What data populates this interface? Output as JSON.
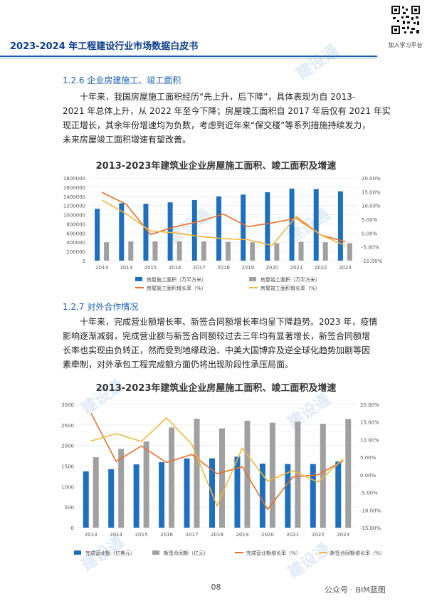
{
  "header": {
    "title": "2023-2024 年工程建设行业市场数据白皮书"
  },
  "qr_caption": "加入学习平台",
  "watermark_text": "建设通",
  "section1": {
    "heading": "1.2.6 企业房建施工、竣工面积",
    "lines": [
      "十年来，我国房屋施工面积经历“先上升，后下降”，具体表现为自 2013-",
      "2021 年总体上升，从 2022 年至今下降；房屋竣工面积自 2017 年后仅有 2021 年实",
      "现正增长，其余年份增速均为负数，考虑到近年来“保交楼”等系列措施持续发力，",
      "未来房屋竣工面积增速有望改善。"
    ]
  },
  "section2": {
    "heading": "1.2.7 对外合作情况",
    "lines": [
      "十年来，完成营业额增长率、新签合同额增长率均呈下降趋势。2023 年，疫情",
      "影响逐渐减弱，完成营业额与新签合同额较过去三年均有显著增长，新签合同额增",
      "长率也实现由负转正，然而受到地缘政治、中美大国博弈及逆全球化趋势加剧等因",
      "素牵制，对外承包工程完成额方面仍将出现阶段性承压局面。"
    ]
  },
  "chart_data": [
    {
      "type": "bar",
      "title": "2013-2023年建筑业企业房屋施工面积、竣工面积及增速",
      "categories": [
        "2013",
        "2014",
        "2015",
        "2016",
        "2017",
        "2018",
        "2019",
        "2020",
        "2021",
        "2022",
        "2023"
      ],
      "ylim": [
        0,
        1800000
      ],
      "yticks": [
        "0",
        "200000",
        "400000",
        "600000",
        "800000",
        "1000000",
        "1200000",
        "1400000",
        "1600000",
        "1800000"
      ],
      "y2lim": [
        -10,
        20
      ],
      "y2ticks": [
        "-10.00%",
        "-5.00%",
        "0.00%",
        "5.00%",
        "10.00%",
        "15.00%",
        "20.00%"
      ],
      "series": [
        {
          "name": "房屋施工面积（万平方米）",
          "kind": "bar",
          "axis": "left",
          "color": "#1f6fbf",
          "values": [
            1130000,
            1250000,
            1240000,
            1270000,
            1320000,
            1400000,
            1440000,
            1490000,
            1570000,
            1560000,
            1510000
          ]
        },
        {
          "name": "房屋竣工面积（万平方米）",
          "kind": "bar",
          "axis": "left",
          "color": "#a0a0a0",
          "values": [
            400000,
            420000,
            420000,
            420000,
            420000,
            410000,
            400000,
            380000,
            410000,
            400000,
            380000
          ]
        },
        {
          "name": "房屋施工面积增长率（%）",
          "kind": "line",
          "axis": "right",
          "color": "#e8702a",
          "values": [
            14.8,
            10.5,
            -0.5,
            2.3,
            4.2,
            6.9,
            2.3,
            3.7,
            5.4,
            -0.7,
            -3.1
          ]
        },
        {
          "name": "房屋竣工面积增长率（%）",
          "kind": "line",
          "axis": "right",
          "color": "#f0b63c",
          "values": [
            12.0,
            7.0,
            0.8,
            0.1,
            -1.2,
            -2.0,
            -2.4,
            -4.5,
            6.1,
            -0.7,
            -4.5
          ]
        }
      ]
    },
    {
      "type": "bar",
      "title": "2013-2023年建筑业企业房屋施工面积、竣工面积及增速",
      "categories": [
        "2013",
        "2014",
        "2015",
        "2016",
        "2017",
        "2018",
        "2019",
        "2020",
        "2021",
        "2022",
        "2023"
      ],
      "ylim": [
        0,
        3000
      ],
      "yticks": [
        "0",
        "500",
        "1000",
        "1500",
        "2000",
        "2500",
        "3000"
      ],
      "y2lim": [
        -15,
        20
      ],
      "y2ticks": [
        "-15.00%",
        "-10.00%",
        "-5.00%",
        "0.00%",
        "5.00%",
        "10.00%",
        "15.00%",
        "20.00%"
      ],
      "series": [
        {
          "name": "完成营业额（亿美元）",
          "kind": "bar",
          "axis": "left",
          "color": "#1f6fbf",
          "values": [
            1371,
            1424,
            1541,
            1594,
            1686,
            1690,
            1729,
            1559,
            1550,
            1550,
            1609
          ]
        },
        {
          "name": "新签合同额（亿元）",
          "kind": "bar",
          "axis": "left",
          "color": "#a0a0a0",
          "values": [
            1716,
            1918,
            2101,
            2440,
            2653,
            2418,
            2603,
            2555,
            2585,
            2531,
            2645
          ]
        },
        {
          "name": "完成营业额增长率（%）",
          "kind": "line",
          "axis": "right",
          "color": "#e8702a",
          "values": [
            17.6,
            3.8,
            8.2,
            3.5,
            5.8,
            0.3,
            2.3,
            -9.8,
            -0.6,
            0.0,
            4.0
          ]
        },
        {
          "name": "新签合同额增长率（%）",
          "kind": "line",
          "axis": "right",
          "color": "#f0b63c",
          "values": [
            9.6,
            11.7,
            9.5,
            16.2,
            8.7,
            -8.8,
            7.6,
            -1.8,
            1.2,
            -2.1,
            4.5
          ]
        }
      ]
    }
  ],
  "page_number": "08",
  "account": "公众号 · BIM蓝图"
}
